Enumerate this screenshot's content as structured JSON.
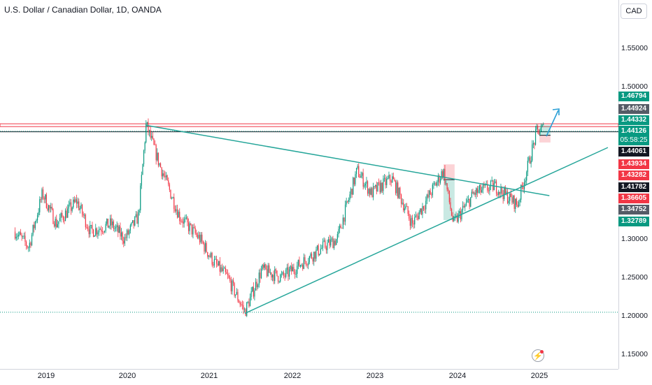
{
  "header": {
    "title": "U.S. Dollar / Canadian Dollar, 1D, OANDA",
    "currency_button": "CAD"
  },
  "chart_data": {
    "type": "candlestick",
    "ylim": [
      1.13,
      1.59
    ],
    "xlim": [
      "2018-08",
      "2025-11"
    ],
    "y_ticks": [
      "1.55000",
      "1.50000",
      "1.30000",
      "1.25000",
      "1.20000",
      "1.15000"
    ],
    "x_ticks": [
      "2019",
      "2020",
      "2021",
      "2022",
      "2023",
      "2024",
      "2025"
    ],
    "price_labels": [
      {
        "value": "1.46794",
        "color": "#089981"
      },
      {
        "value": "1.44924",
        "color": "#555b66"
      },
      {
        "value": "1.44332",
        "color": "#089981"
      },
      {
        "value": "1.44126",
        "sub": "05:58:25",
        "color": "#089981"
      },
      {
        "value": "1.44061",
        "color": "#131722"
      },
      {
        "value": "1.43934",
        "color": "#f23645"
      },
      {
        "value": "1.43282",
        "color": "#f23645"
      },
      {
        "value": "1.41782",
        "color": "#131722"
      },
      {
        "value": "1.36605",
        "color": "#f23645"
      },
      {
        "value": "1.34752",
        "color": "#555b66"
      },
      {
        "value": "1.32789",
        "color": "#089981"
      }
    ],
    "series_path": [
      [
        "2018-08",
        1.31
      ],
      [
        "2018-10",
        1.29
      ],
      [
        "2018-12",
        1.36
      ],
      [
        "2019-02",
        1.32
      ],
      [
        "2019-05",
        1.35
      ],
      [
        "2019-07",
        1.31
      ],
      [
        "2019-10",
        1.32
      ],
      [
        "2019-12",
        1.3
      ],
      [
        "2020-02",
        1.33
      ],
      [
        "2020-03-19",
        1.45
      ],
      [
        "2020-05",
        1.4
      ],
      [
        "2020-08",
        1.33
      ],
      [
        "2020-11",
        1.3
      ],
      [
        "2021-01",
        1.27
      ],
      [
        "2021-03",
        1.25
      ],
      [
        "2021-06-01",
        1.205
      ],
      [
        "2021-08",
        1.26
      ],
      [
        "2021-11",
        1.25
      ],
      [
        "2022-02",
        1.27
      ],
      [
        "2022-05",
        1.29
      ],
      [
        "2022-07",
        1.3
      ],
      [
        "2022-10-13",
        1.39
      ],
      [
        "2022-12",
        1.36
      ],
      [
        "2023-03",
        1.38
      ],
      [
        "2023-06",
        1.32
      ],
      [
        "2023-08",
        1.35
      ],
      [
        "2023-10-31",
        1.39
      ],
      [
        "2023-12",
        1.32
      ],
      [
        "2024-03",
        1.36
      ],
      [
        "2024-06",
        1.37
      ],
      [
        "2024-09-25",
        1.345
      ],
      [
        "2024-11",
        1.4
      ],
      [
        "2024-12-19",
        1.44
      ],
      [
        "2025-01",
        1.445
      ],
      [
        "2025-02",
        1.44
      ]
    ],
    "color_up": "#089981",
    "color_down": "#f23645",
    "horizontal_lines": [
      {
        "y": 1.4492,
        "color": "#f23645",
        "style": "solid-band"
      },
      {
        "y": 1.4406,
        "color": "#131722",
        "style": "solid"
      },
      {
        "y": 1.4413,
        "color": "#089981",
        "style": "dotted"
      },
      {
        "y": 1.2045,
        "color": "#089981",
        "style": "dotted"
      }
    ],
    "trendlines": [
      {
        "from": [
          "2020-03-19",
          1.449
        ],
        "to": [
          "2025-02-15",
          1.357
        ],
        "color": "#26a69a"
      },
      {
        "from": [
          "2021-06-01",
          1.203
        ],
        "to": [
          "2025-11-01",
          1.42
        ],
        "color": "#26a69a"
      }
    ],
    "position_boxes": [
      {
        "x0": "2023-11-01",
        "x1": "2023-12-20",
        "entry": 1.378,
        "stop": 1.398,
        "target": 1.325
      },
      {
        "x0": "2025-01-01",
        "x1": "2025-02-20",
        "entry": 1.436,
        "stop": 1.4266,
        "target": 1.4492
      }
    ]
  }
}
